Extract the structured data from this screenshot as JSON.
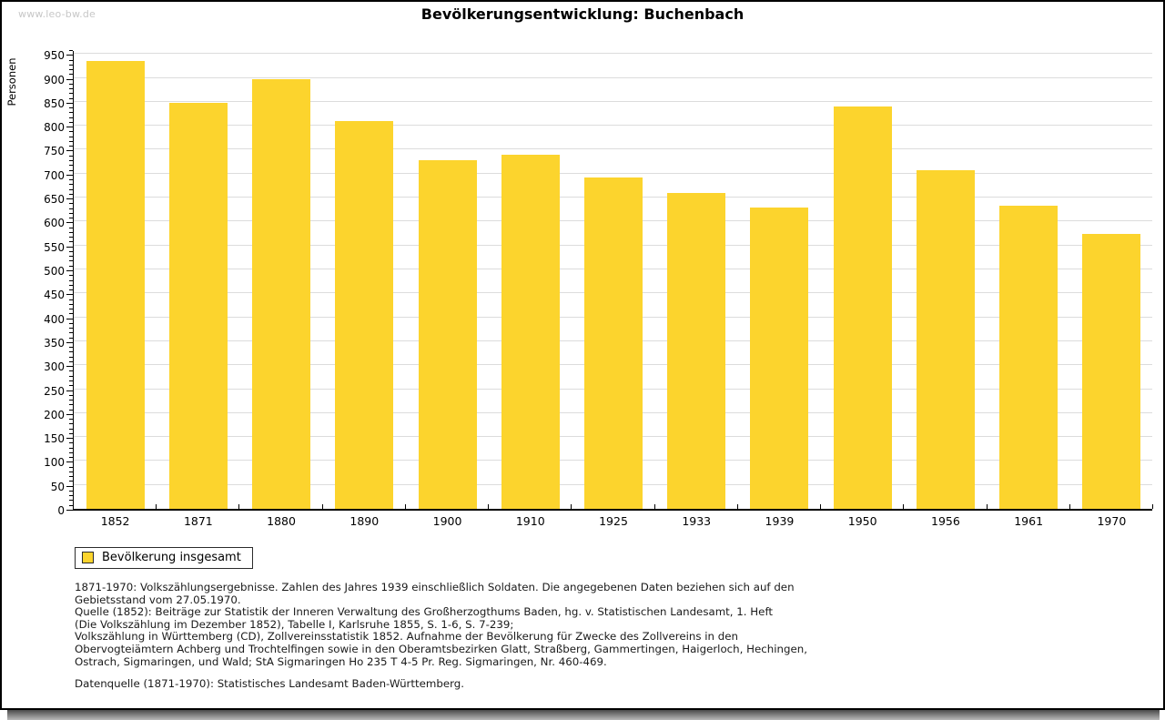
{
  "page": {
    "watermark": "www.leo-bw.de"
  },
  "chart_data": {
    "type": "bar",
    "title": "Bevölkerungsentwicklung: Buchenbach",
    "ylabel": "Personen",
    "xlabel": "",
    "categories": [
      "1852",
      "1871",
      "1880",
      "1890",
      "1900",
      "1910",
      "1925",
      "1933",
      "1939",
      "1950",
      "1956",
      "1961",
      "1970"
    ],
    "values": [
      936,
      847,
      898,
      810,
      729,
      740,
      692,
      660,
      630,
      840,
      708,
      633,
      574
    ],
    "ylim": [
      0,
      960
    ],
    "ytick_major_step": 50,
    "ytick_minor_step": 10,
    "ytick_label_max": 950,
    "grid": "horizontal-major",
    "bar_color": "#FCD42D",
    "gridline_color": "#dcdcdc",
    "legend_position": "bottom-left",
    "legend": [
      {
        "label": "Bevölkerung insgesamt",
        "color": "#FCD42D"
      }
    ]
  },
  "footer": {
    "notes": [
      "1871-1970: Volkszählungsergebnisse. Zahlen des Jahres 1939 einschließlich Soldaten. Die angegebenen Daten beziehen sich auf den",
      "Gebietsstand vom 27.05.1970.",
      "Quelle (1852): Beiträge zur Statistik der Inneren Verwaltung des Großherzogthums Baden, hg. v. Statistischen Landesamt, 1. Heft",
      "(Die Volkszählung im Dezember 1852), Tabelle I, Karlsruhe 1855, S. 1-6, S. 7-239;",
      "Volkszählung in Württemberg (CD), Zollvereinsstatistik 1852. Aufnahme der Bevölkerung für Zwecke des Zollvereins in den",
      "Obervogteiämtern Achberg und Trochtelfingen sowie in den Oberamtsbezirken Glatt, Straßberg, Gammertingen, Haigerloch, Hechingen,",
      "Ostrach, Sigmaringen, und Wald; StA Sigmaringen Ho 235 T 4-5 Pr. Reg. Sigmaringen, Nr. 460-469."
    ],
    "datasource": "Datenquelle (1871-1970): Statistisches Landesamt Baden-Württemberg."
  }
}
